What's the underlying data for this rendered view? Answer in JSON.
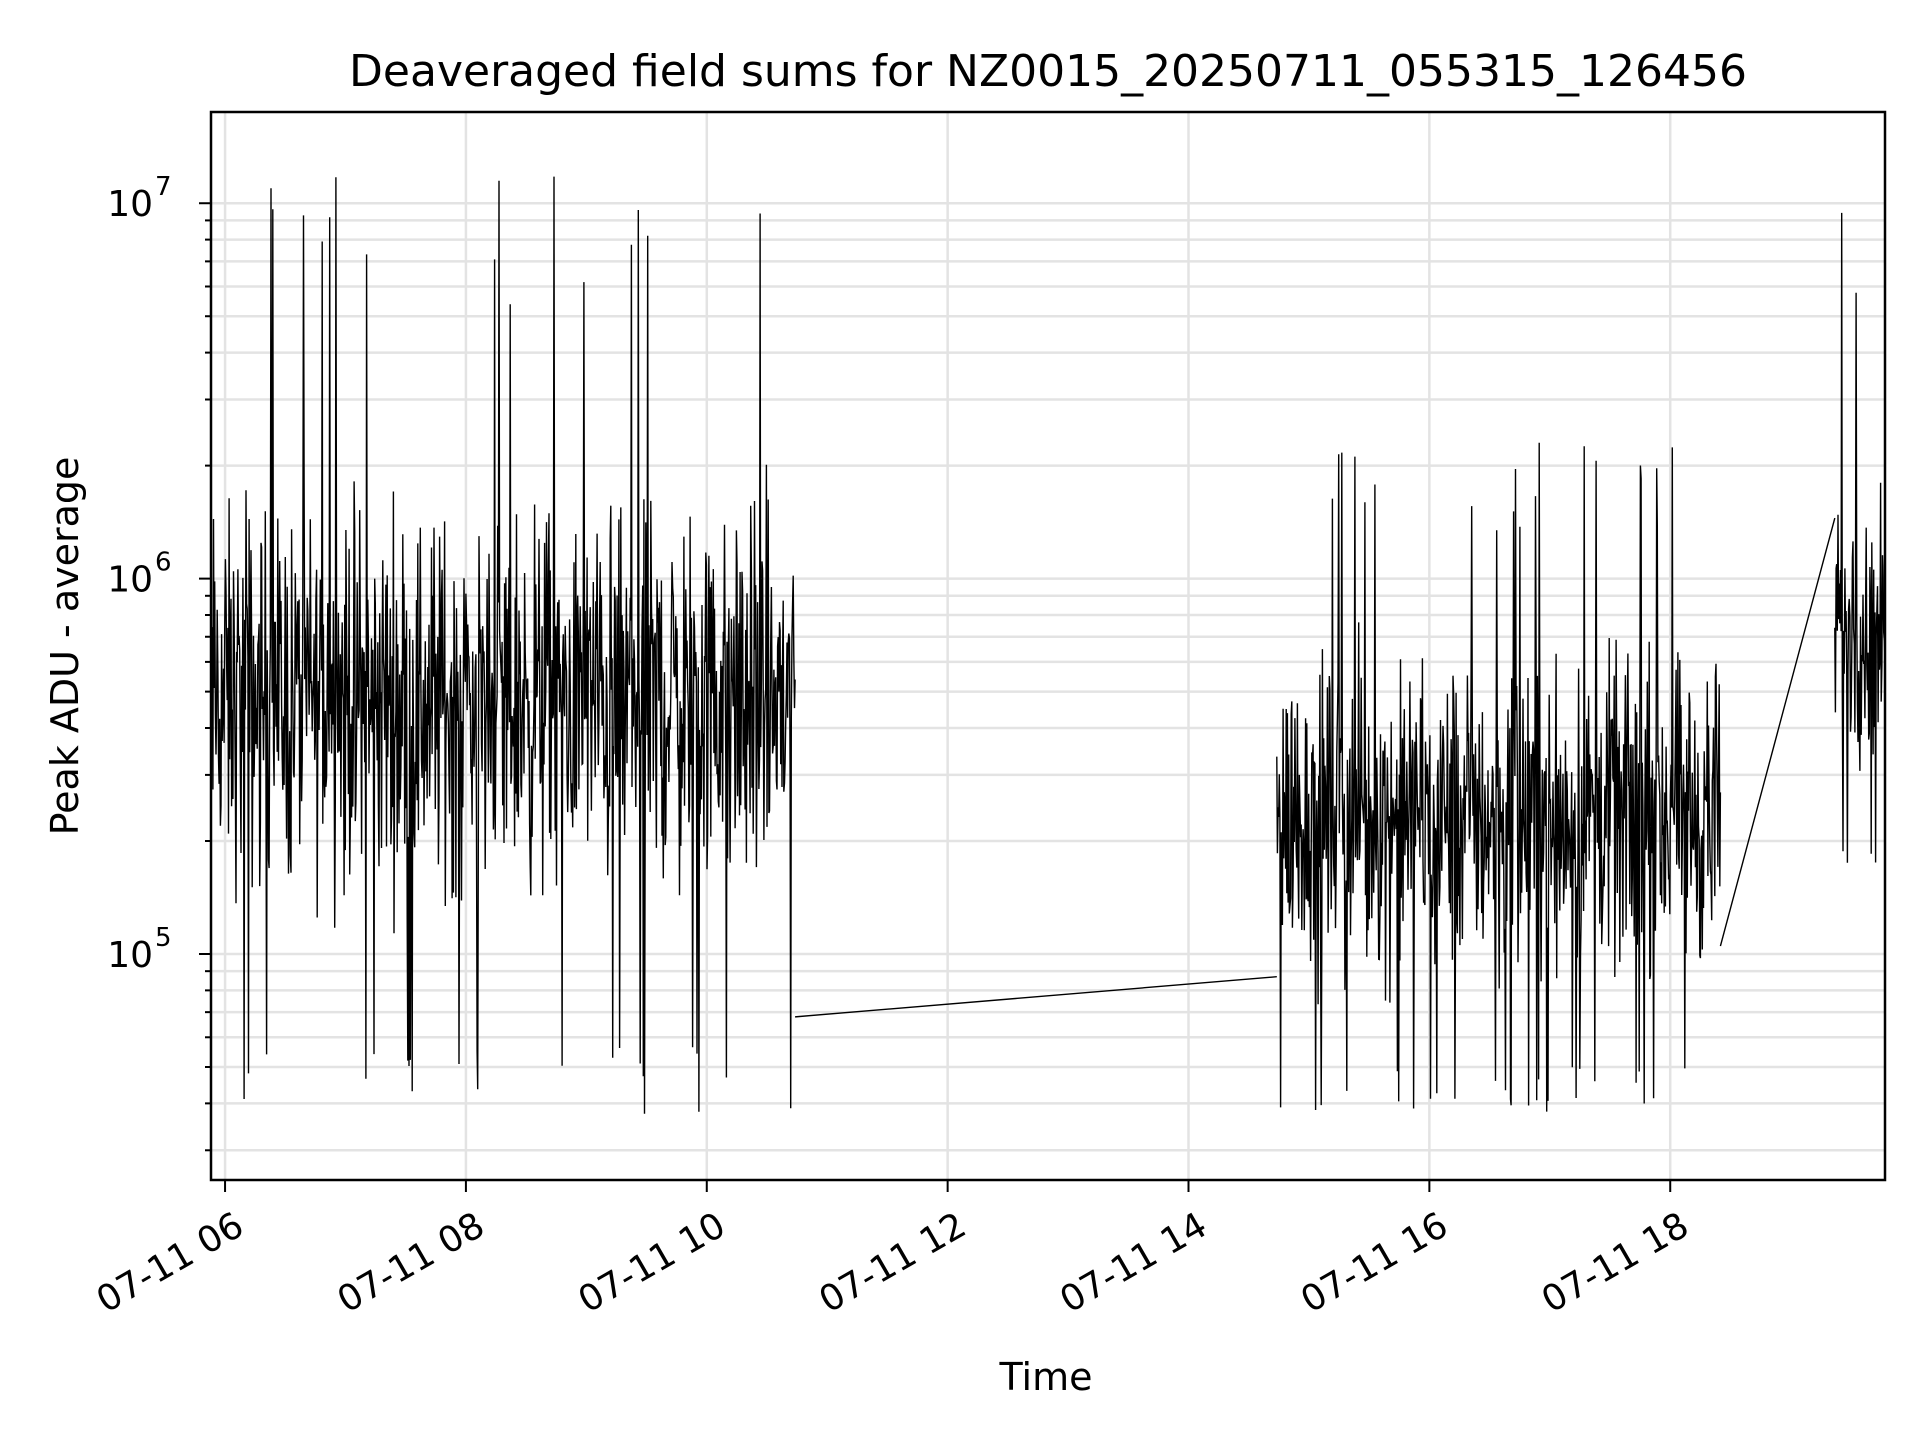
{
  "chart_data": {
    "type": "line",
    "title": "Deaveraged field sums for NZ0015_20250711_055315_126456",
    "xlabel": "Time",
    "ylabel": "Peak ADU - average",
    "x_scale": "time",
    "y_scale": "log",
    "xlim": [
      "2025-07-11 05:53",
      "2025-07-11 19:47"
    ],
    "ylim": [
      25000,
      17500000
    ],
    "grid": true,
    "legend": "none",
    "x_ticks": [
      {
        "t": "2025-07-11 06:00",
        "label": "07-11 06"
      },
      {
        "t": "2025-07-11 08:00",
        "label": "07-11 08"
      },
      {
        "t": "2025-07-11 10:00",
        "label": "07-11 10"
      },
      {
        "t": "2025-07-11 12:00",
        "label": "07-11 12"
      },
      {
        "t": "2025-07-11 14:00",
        "label": "07-11 14"
      },
      {
        "t": "2025-07-11 16:00",
        "label": "07-11 16"
      },
      {
        "t": "2025-07-11 18:00",
        "label": "07-11 18"
      }
    ],
    "y_ticks": [
      {
        "value": 100000,
        "base": "10",
        "exp": "5"
      },
      {
        "value": 1000000,
        "base": "10",
        "exp": "6"
      },
      {
        "value": 10000000,
        "base": "10",
        "exp": "7"
      }
    ],
    "line_color": "#000000",
    "series": [
      {
        "segments": [
          {
            "start": "2025-07-11 05:53",
            "end": "2025-07-11 10:44",
            "typical_range": [
              90000,
              2500000
            ],
            "extremes": [
              32000,
              12500000
            ]
          },
          {
            "start": "2025-07-11 14:44",
            "end": "2025-07-11 18:25",
            "typical_range": [
              60000,
              900000
            ],
            "extremes": [
              38000,
              2400000
            ]
          },
          {
            "start": "2025-07-11 19:22",
            "end": "2025-07-11 19:47",
            "typical_range": [
              250000,
              2000000
            ],
            "extremes": [
              170000,
              10500000
            ]
          }
        ],
        "gap_connectors": [
          {
            "from": {
              "t": "2025-07-11 10:44",
              "y": 68000
            },
            "to": {
              "t": "2025-07-11 14:44",
              "y": 87000
            }
          },
          {
            "from": {
              "t": "2025-07-11 18:25",
              "y": 105000
            },
            "to": {
              "t": "2025-07-11 19:22",
              "y": 1450000
            }
          }
        ]
      }
    ]
  }
}
